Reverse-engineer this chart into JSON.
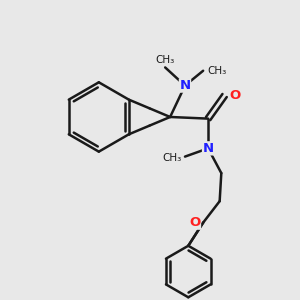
{
  "background_color": "#e8e8e8",
  "bond_color": "#1a1a1a",
  "N_color": "#2020ff",
  "O_color": "#ff2020",
  "line_width": 1.8,
  "figsize": [
    3.0,
    3.0
  ],
  "dpi": 100,
  "xlim": [
    0.0,
    7.5
  ],
  "ylim": [
    0.5,
    9.5
  ]
}
